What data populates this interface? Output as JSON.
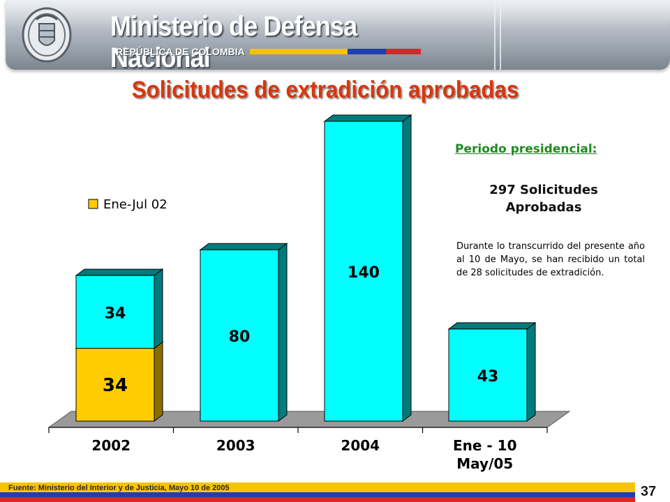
{
  "header": {
    "title": "Ministerio de Defensa Nacional",
    "subtitle": "REPÚBLICA DE COLOMBIA",
    "flag_colors": [
      "#f5c400",
      "#1f3fae",
      "#d8262e"
    ]
  },
  "title": "Solicitudes de extradición aprobadas",
  "chart_data": {
    "type": "bar",
    "title": "Solicitudes de extradición aprobadas",
    "xlabel": "",
    "ylabel": "",
    "categories": [
      "2002",
      "2003",
      "2004",
      "Ene - 10 May/05"
    ],
    "category_lines": [
      [
        "2002"
      ],
      [
        "2003"
      ],
      [
        "2004"
      ],
      [
        "Ene - 10",
        "May/05"
      ]
    ],
    "series": [
      {
        "name": "Ene-Jul 02",
        "values": [
          34,
          0,
          0,
          0
        ],
        "color": "#ffcc00",
        "side_color": "#8a6d00"
      },
      {
        "name": "",
        "values": [
          34,
          80,
          140,
          43
        ],
        "color": "#00ffff",
        "side_color": "#007b7b"
      }
    ],
    "data_labels": [
      [
        "34",
        "",
        "",
        ""
      ],
      [
        "34",
        "80",
        "140",
        "43"
      ]
    ],
    "stacked": true,
    "ylim": [
      0,
      140
    ],
    "grid": false,
    "legend": {
      "position": "top-left",
      "entries": [
        "Ene-Jul 02"
      ]
    },
    "style": "3d"
  },
  "side_info": {
    "heading": "Periodo presidencial:",
    "total_line1": "297 Solicitudes",
    "total_line2": "Aprobadas",
    "note": "Durante lo transcurrido del presente año al 10 de Mayo, se han recibido un total de 28 solicitudes de extradición."
  },
  "footer": {
    "source": "Fuente: Ministerio del Interior y de Justicia, Mayo 10 de 2005",
    "page_number": "37",
    "colors": [
      "#f5c400",
      "#1f3fae",
      "#d8262e"
    ]
  }
}
